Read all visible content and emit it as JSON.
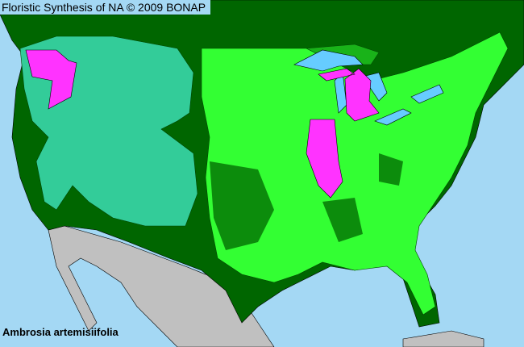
{
  "title": "Floristic Synthesis of NA © 2009 BONAP",
  "species": "Ambrosia artemisiifolia",
  "colors": {
    "water": "#a4d8f4",
    "lakes": "#66ccff",
    "absent_region": "#006600",
    "present_county": "#33ff33",
    "present_state": "#33cc99",
    "noxious_state": "#ff33ff",
    "outside_range": "#c0c0c0",
    "borders": "#000000"
  }
}
